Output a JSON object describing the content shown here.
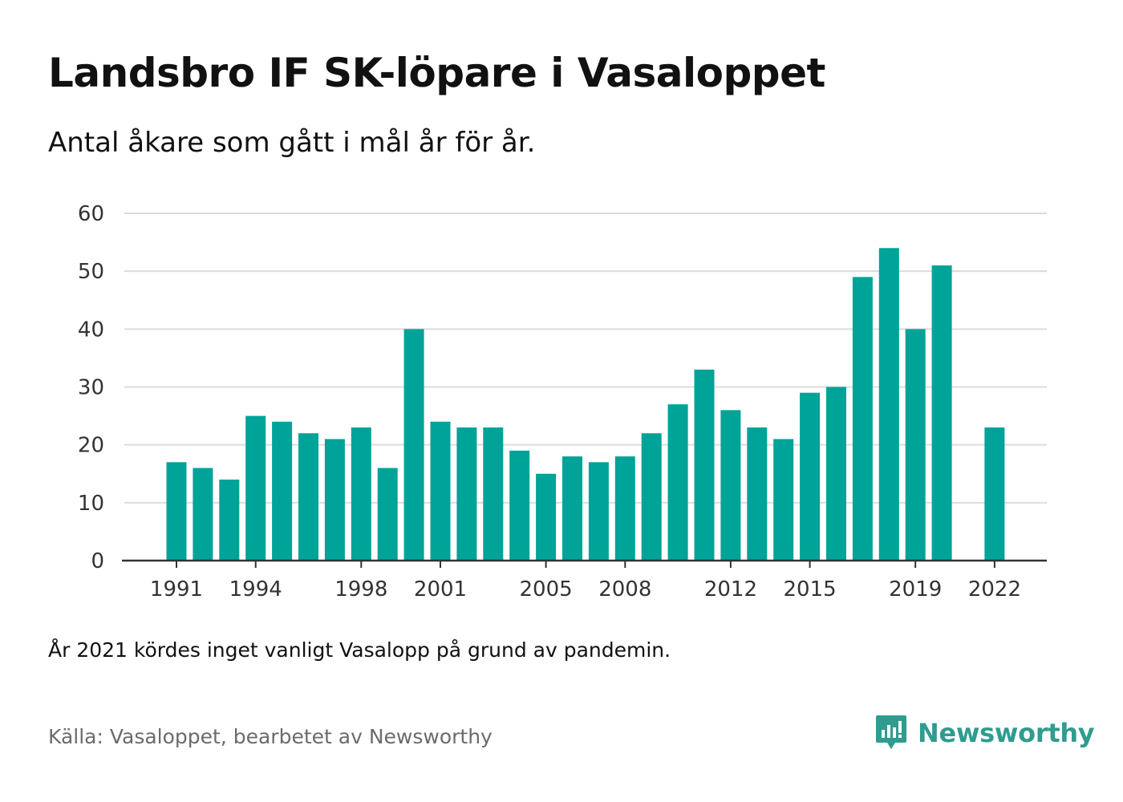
{
  "title": "Landsbro IF SK-löpare i Vasaloppet",
  "subtitle": "Antal åkare som gått i mål år för år.",
  "note": "År 2021 kördes inget vanligt Vasalopp på grund av pandemin.",
  "source": "Källa: Vasaloppet, bearbetet av Newsworthy",
  "brand": {
    "name": "Newsworthy",
    "icon": "newsworthy-logo-icon",
    "color": "#2f9c8f"
  },
  "chart_data": {
    "type": "bar",
    "title": "Landsbro IF SK-löpare i Vasaloppet",
    "subtitle": "Antal åkare som gått i mål år för år.",
    "xlabel": "",
    "ylabel": "",
    "ylim": [
      0,
      60
    ],
    "yticks": [
      0,
      10,
      20,
      30,
      40,
      50,
      60
    ],
    "xtick_labels": [
      "1991",
      "1994",
      "1998",
      "2001",
      "2005",
      "2008",
      "2012",
      "2015",
      "2019",
      "2022"
    ],
    "grid": true,
    "bar_color": "#00a398",
    "categories": [
      1991,
      1992,
      1993,
      1994,
      1995,
      1996,
      1997,
      1998,
      1999,
      2000,
      2001,
      2002,
      2003,
      2004,
      2005,
      2006,
      2007,
      2008,
      2009,
      2010,
      2011,
      2012,
      2013,
      2014,
      2015,
      2016,
      2017,
      2018,
      2019,
      2020,
      2021,
      2022
    ],
    "values": [
      17,
      16,
      14,
      25,
      24,
      22,
      21,
      23,
      16,
      40,
      24,
      23,
      23,
      19,
      15,
      18,
      17,
      18,
      22,
      27,
      33,
      26,
      23,
      21,
      29,
      30,
      49,
      54,
      40,
      51,
      null,
      23
    ]
  }
}
